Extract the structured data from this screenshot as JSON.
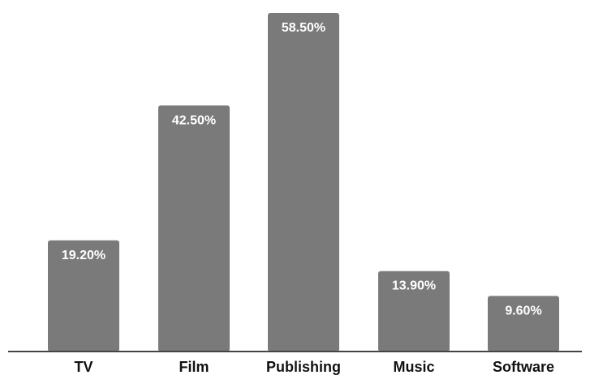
{
  "chart_data": {
    "type": "bar",
    "categories": [
      "TV",
      "Film",
      "Publishing",
      "Music",
      "Software"
    ],
    "values": [
      19.2,
      42.5,
      58.5,
      13.9,
      9.6
    ],
    "data_labels": [
      "19.20%",
      "42.50%",
      "58.50%",
      "13.90%",
      "9.60%"
    ],
    "title": "",
    "xlabel": "",
    "ylabel": "",
    "ylim": [
      0,
      58.5
    ],
    "grid": false,
    "legend": "none",
    "colors": {
      "bar": "#7a7a7a",
      "axis": "#444444",
      "label_text": "#ffffff",
      "category_text": "#111111"
    }
  }
}
